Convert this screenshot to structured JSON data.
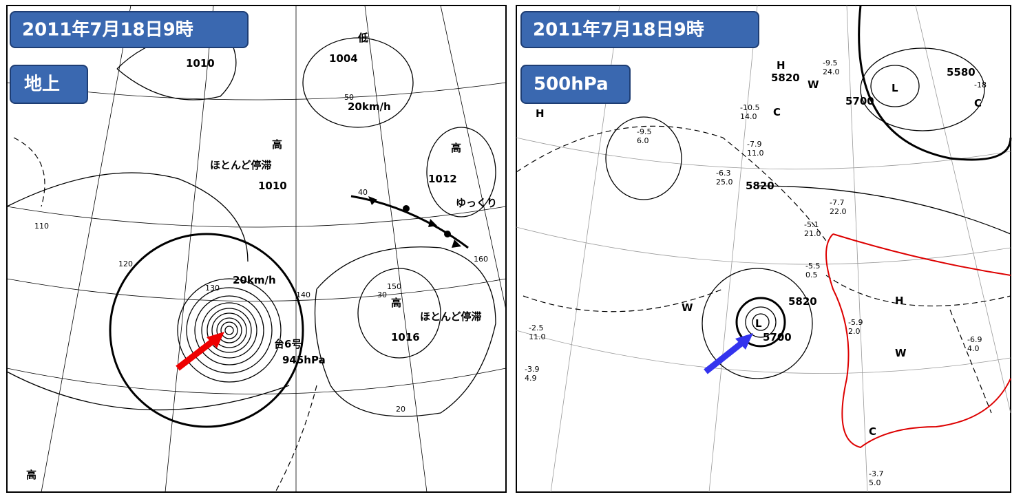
{
  "left": {
    "badges": [
      "2011年7月18日9時",
      "地上"
    ],
    "labels": [
      "1010",
      "低",
      "1004",
      "20km/h",
      "高",
      "ほとんど停滞",
      "1010",
      "高",
      "1012",
      "ゆっくり",
      "20km/h",
      "台6号",
      "945hPa",
      "高",
      "ほとんど停滞",
      "1016",
      "高",
      "50",
      "40",
      "30",
      "20",
      "110",
      "120",
      "130",
      "140",
      "150",
      "160"
    ]
  },
  "right": {
    "badges": [
      "2011年7月18日9時",
      "500hPa"
    ],
    "labels": [
      "H",
      "5820",
      "5580",
      "L",
      "5700",
      "-18",
      "C",
      "H",
      "C",
      "5820",
      "W",
      "5820",
      "5700",
      "L",
      "W",
      "H",
      "W",
      "C",
      "-10.5",
      "14.0",
      "-9.5",
      "24.0",
      "-7.9",
      "11.0",
      "-6.3",
      "25.0",
      "-5.1",
      "21.0",
      "-7.7",
      "22.0",
      "-5.9",
      "2.0",
      "-6.9",
      "4.0",
      "-3.7",
      "5.0",
      "-3.9",
      "4.9",
      "-2.5",
      "11.0",
      "-9.5",
      "6.0",
      "-5.5",
      "0.5"
    ]
  }
}
